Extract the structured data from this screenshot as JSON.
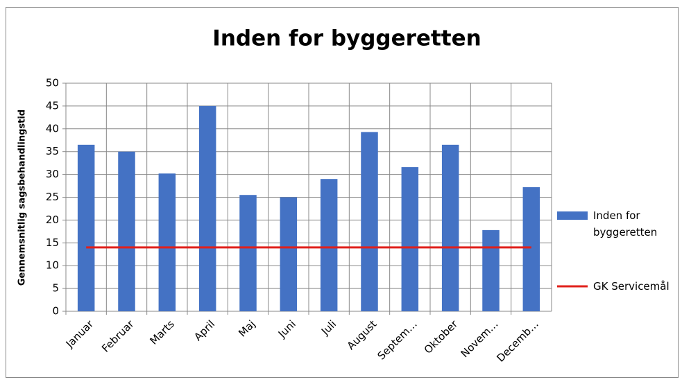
{
  "chart_data": {
    "type": "bar",
    "title": "Inden for byggeretten",
    "y_label": "Gennemsnitlig sagsbehandlingstid",
    "categories": [
      "Januar",
      "Februar",
      "Marts",
      "April",
      "Maj",
      "Juni",
      "Juli",
      "August",
      "Septem…",
      "Oktober",
      "Novem…",
      "Decemb…"
    ],
    "series": [
      {
        "name": "Inden for byggeretten",
        "type": "bar",
        "color": "#4472c4",
        "values": [
          36.5,
          35,
          30.2,
          45,
          25.5,
          25,
          29,
          39.3,
          31.6,
          36.5,
          17.8,
          27.2
        ]
      },
      {
        "name": "GK Servicemål",
        "type": "line",
        "color": "#e0201b",
        "values": [
          14,
          14,
          14,
          14,
          14,
          14,
          14,
          14,
          14,
          14,
          14,
          14
        ]
      }
    ],
    "ylim": [
      0,
      50
    ],
    "yticks": [
      0,
      5,
      10,
      15,
      20,
      25,
      30,
      35,
      40,
      45,
      50
    ],
    "grid": true,
    "legend": "right"
  }
}
